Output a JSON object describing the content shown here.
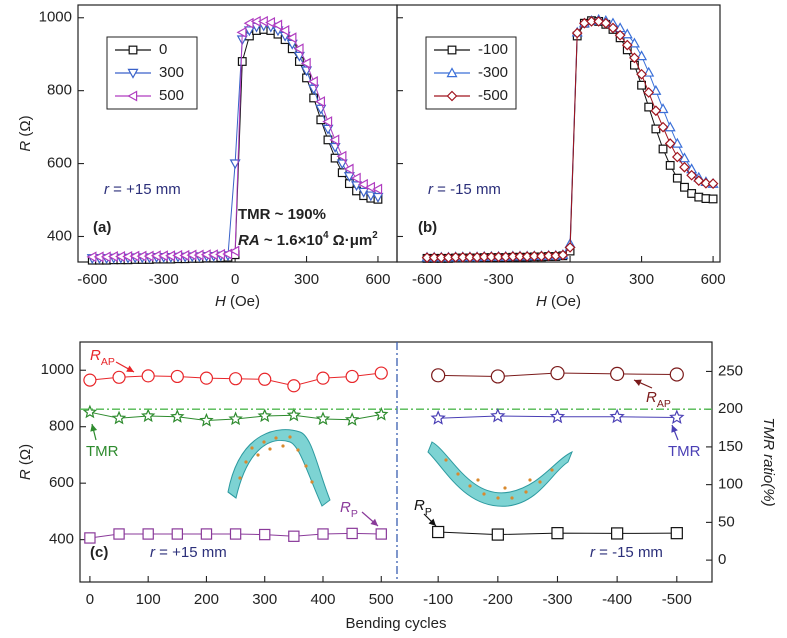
{
  "chart_data": [
    {
      "type": "line",
      "xlabel": [
        "H",
        " (Oe)"
      ],
      "ylabel": [
        "R",
        " (Ω)"
      ],
      "xlim": [
        -660,
        680
      ],
      "ylim": [
        330,
        1035
      ],
      "xticks": [
        -600,
        -300,
        0,
        300,
        600
      ],
      "yticks": [
        400,
        600,
        800,
        1000
      ],
      "legend": true,
      "x": [
        -600,
        -570,
        -540,
        -510,
        -480,
        -450,
        -420,
        -390,
        -360,
        -330,
        -300,
        -270,
        -240,
        -210,
        -180,
        -150,
        -120,
        -90,
        -60,
        -30,
        0,
        30,
        60,
        90,
        120,
        150,
        180,
        210,
        240,
        270,
        300,
        330,
        360,
        390,
        420,
        450,
        480,
        510,
        540,
        570,
        600
      ],
      "series": [
        {
          "name": "0",
          "color": "#111111",
          "marker": "square",
          "values": [
            335,
            335,
            335,
            336,
            336,
            336,
            337,
            337,
            337,
            338,
            338,
            338,
            339,
            339,
            340,
            340,
            341,
            341,
            342,
            343,
            350,
            880,
            950,
            965,
            968,
            965,
            955,
            940,
            915,
            880,
            835,
            780,
            720,
            665,
            615,
            575,
            545,
            525,
            512,
            505,
            502
          ]
        },
        {
          "name": "300",
          "color": "#3a62c9",
          "marker": "triangle-down",
          "values": [
            340,
            340,
            340,
            341,
            341,
            341,
            342,
            342,
            342,
            343,
            343,
            343,
            344,
            344,
            345,
            345,
            346,
            346,
            347,
            348,
            600,
            940,
            965,
            975,
            978,
            975,
            965,
            950,
            928,
            895,
            855,
            805,
            750,
            695,
            645,
            600,
            565,
            540,
            522,
            512,
            508
          ]
        },
        {
          "name": "500",
          "color": "#b03cc0",
          "marker": "triangle-left",
          "values": [
            344,
            344,
            344,
            345,
            345,
            345,
            346,
            346,
            346,
            347,
            347,
            347,
            348,
            348,
            349,
            349,
            350,
            350,
            351,
            352,
            360,
            960,
            985,
            990,
            990,
            987,
            980,
            965,
            945,
            915,
            875,
            825,
            770,
            715,
            665,
            620,
            585,
            560,
            543,
            535,
            530
          ]
        }
      ],
      "annotations": [
        [
          "r",
          " = +15 mm"
        ],
        [
          "(a)"
        ],
        [
          "TMR ~ 190%"
        ],
        [
          "RA",
          " ~ 1.6×10",
          "4",
          " Ω·μm",
          "2"
        ]
      ]
    },
    {
      "type": "line",
      "xlabel": [
        "H",
        " (Oe)"
      ],
      "xlim": [
        -726,
        629
      ],
      "ylim": [
        330,
        1035
      ],
      "xticks": [
        -600,
        -300,
        0,
        300,
        600
      ],
      "yticks": [
        400,
        600,
        800,
        1000
      ],
      "legend": true,
      "x": [
        -600,
        -570,
        -540,
        -510,
        -480,
        -450,
        -420,
        -390,
        -360,
        -330,
        -300,
        -270,
        -240,
        -210,
        -180,
        -150,
        -120,
        -90,
        -60,
        -30,
        0,
        30,
        60,
        90,
        120,
        150,
        180,
        210,
        240,
        270,
        300,
        330,
        360,
        390,
        420,
        450,
        480,
        510,
        540,
        570,
        600
      ],
      "series": [
        {
          "name": "-100",
          "color": "#111111",
          "marker": "square",
          "values": [
            340,
            340,
            340,
            340,
            341,
            341,
            341,
            341,
            342,
            342,
            342,
            342,
            343,
            343,
            343,
            344,
            344,
            345,
            345,
            347,
            360,
            950,
            985,
            992,
            990,
            982,
            968,
            945,
            912,
            870,
            815,
            755,
            695,
            640,
            595,
            560,
            535,
            518,
            508,
            504,
            503
          ]
        },
        {
          "name": "-300",
          "color": "#3a6fd8",
          "marker": "triangle-up",
          "values": [
            343,
            343,
            343,
            343,
            344,
            344,
            344,
            344,
            345,
            345,
            345,
            345,
            346,
            346,
            346,
            347,
            347,
            348,
            348,
            350,
            380,
            960,
            985,
            992,
            995,
            992,
            985,
            972,
            955,
            930,
            895,
            850,
            800,
            750,
            700,
            655,
            615,
            585,
            562,
            550,
            545
          ]
        },
        {
          "name": "-500",
          "color": "#a0141e",
          "marker": "diamond",
          "values": [
            342,
            342,
            342,
            342,
            343,
            343,
            343,
            343,
            344,
            344,
            344,
            344,
            345,
            345,
            345,
            346,
            346,
            347,
            347,
            349,
            370,
            958,
            985,
            990,
            990,
            985,
            972,
            952,
            925,
            890,
            845,
            795,
            745,
            700,
            655,
            618,
            590,
            568,
            553,
            546,
            545
          ]
        }
      ],
      "annotations": [
        [
          "r",
          " = -15 mm"
        ],
        [
          "(b)"
        ]
      ]
    },
    {
      "type": "line",
      "xlabel": "Bending cycles",
      "ylabel": [
        "R",
        " (Ω)"
      ],
      "xlim": [
        -17,
        527
      ],
      "ylim": [
        250,
        1100
      ],
      "xticks": [
        0,
        100,
        200,
        300,
        400,
        500
      ],
      "yticks": [
        400,
        600,
        800,
        1000
      ],
      "y2lim": [
        -29,
        289
      ],
      "x": [
        0,
        50,
        100,
        150,
        200,
        250,
        300,
        350,
        400,
        450,
        500
      ],
      "series": [
        {
          "name": "R",
          "subscript": "AP",
          "color": "#e8262a",
          "marker": "circle",
          "values": [
            965,
            975,
            980,
            978,
            972,
            970,
            968,
            945,
            972,
            978,
            990
          ]
        },
        {
          "name": "TMR",
          "color": "#2e8b2e",
          "marker": "star",
          "axis": "y2",
          "values": [
            196,
            188,
            191,
            190,
            185,
            187,
            191,
            192,
            187,
            186,
            193
          ]
        },
        {
          "name": "R",
          "subscript": "P",
          "color": "#8a3a9a",
          "marker": "square",
          "values": [
            406,
            420,
            420,
            420,
            420,
            420,
            418,
            412,
            420,
            422,
            420
          ]
        }
      ],
      "annotations": [
        [
          "(c)"
        ],
        [
          "r",
          " = +15 mm"
        ]
      ]
    },
    {
      "type": "line",
      "y2label": "TMR ratio(%)",
      "xlim": [
        -31,
        -559
      ],
      "ylim": [
        250,
        1100
      ],
      "xticks": [
        -100,
        -200,
        -300,
        -400,
        -500
      ],
      "y2lim": [
        -29,
        289
      ],
      "y2ticks": [
        0,
        50,
        100,
        150,
        200,
        250
      ],
      "reference_line_y2": 200,
      "x": [
        -100,
        -200,
        -300,
        -400,
        -500
      ],
      "series": [
        {
          "name": "R",
          "subscript": "AP",
          "color": "#7b1a1a",
          "marker": "circle",
          "values": [
            982,
            978,
            990,
            987,
            985
          ]
        },
        {
          "name": "TMR",
          "color": "#4a3fb5",
          "marker": "star",
          "axis": "y2",
          "values": [
            188,
            191,
            190,
            190,
            189
          ]
        },
        {
          "name": "R",
          "subscript": "P",
          "color": "#111111",
          "marker": "square",
          "values": [
            427,
            418,
            423,
            422,
            423
          ]
        }
      ],
      "annotations": [
        [
          "r",
          " = -15 mm"
        ]
      ]
    }
  ]
}
